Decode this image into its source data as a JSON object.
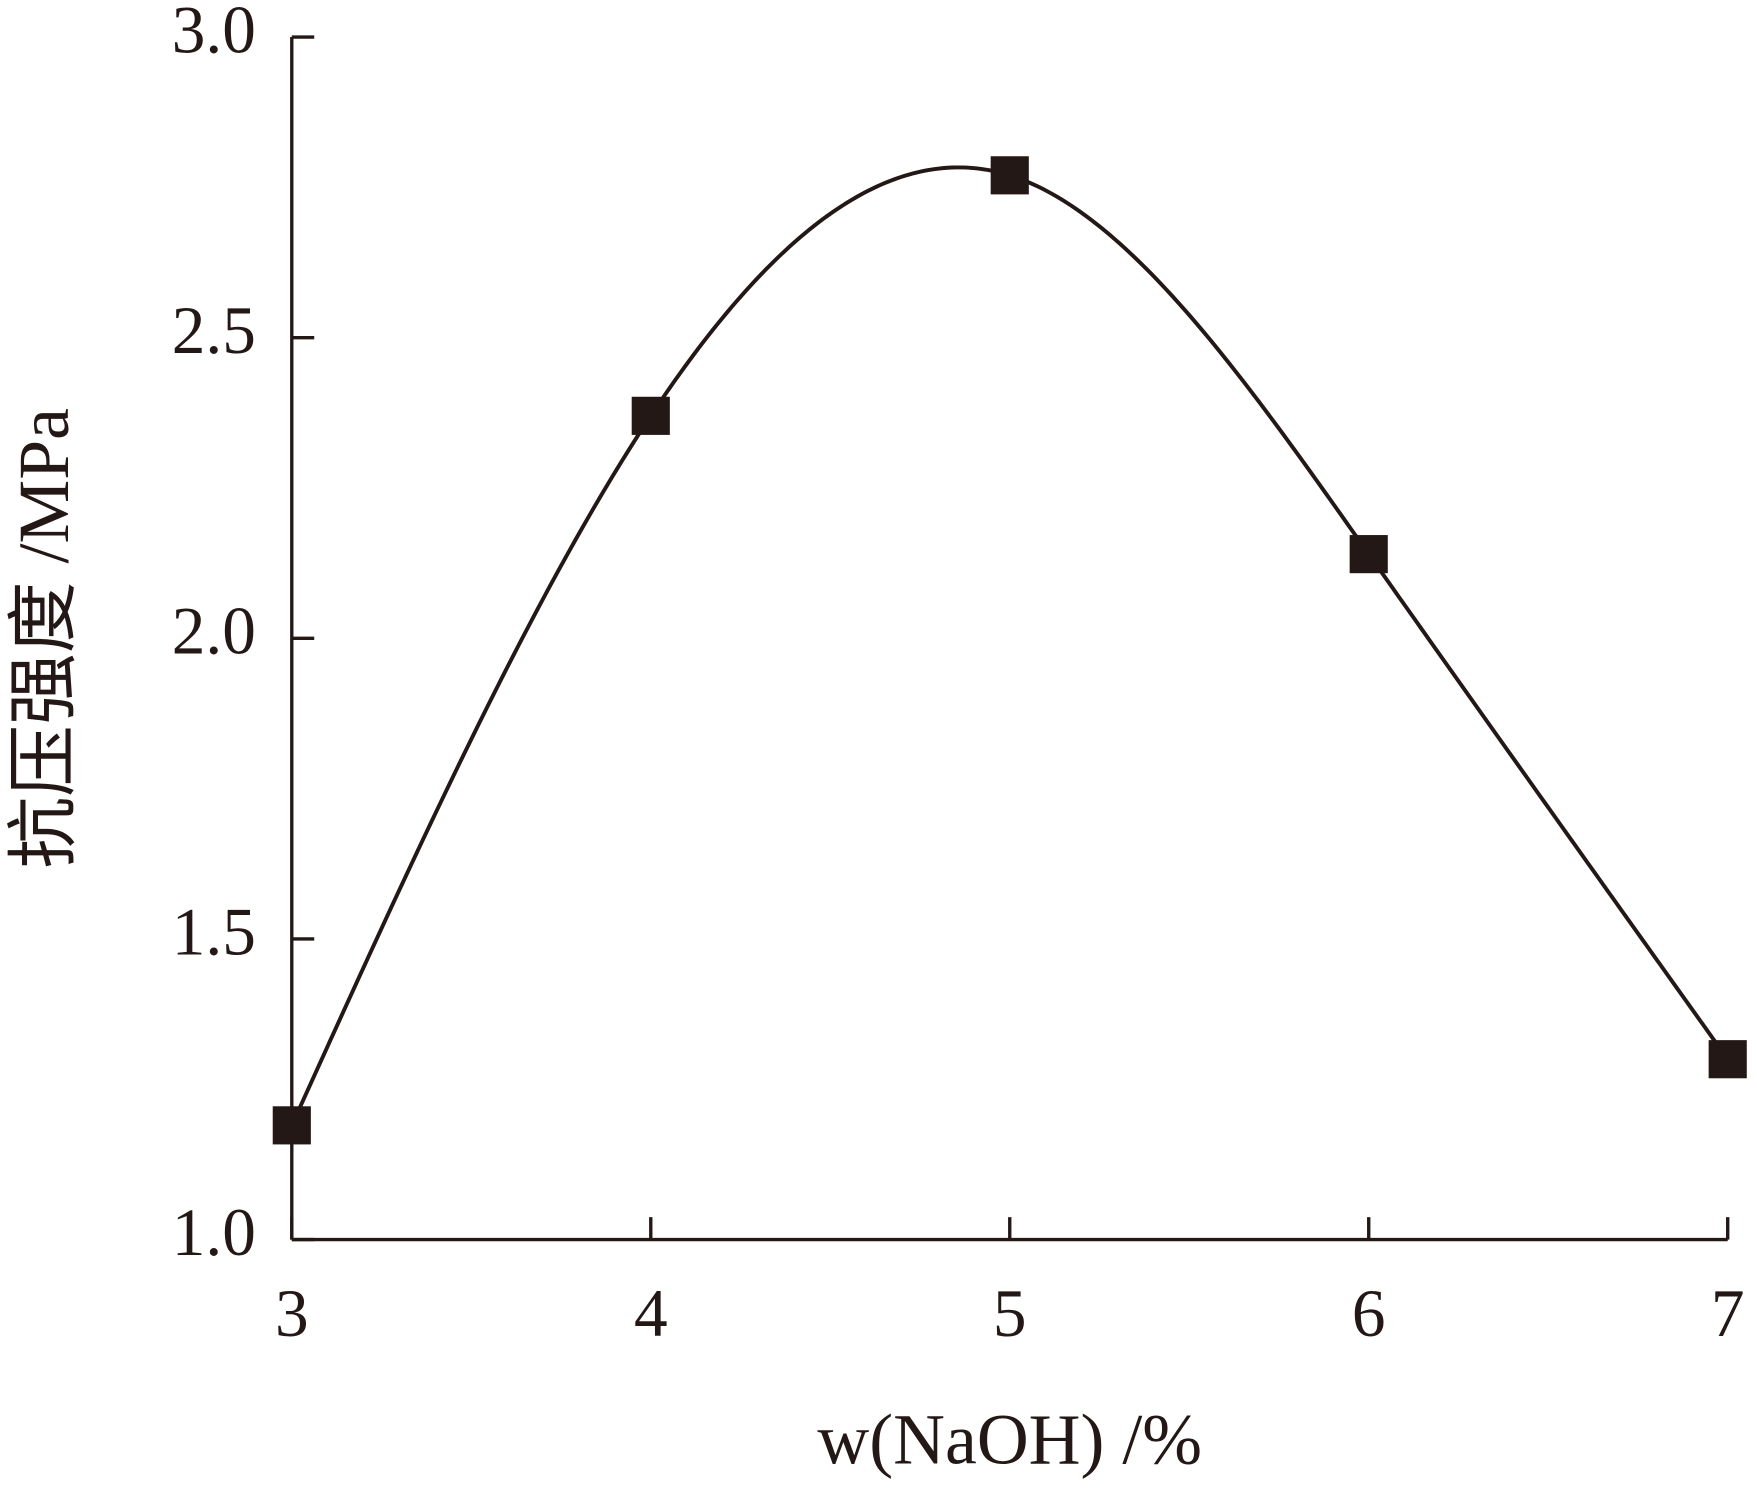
{
  "chart_data": {
    "type": "line",
    "x": [
      3,
      4,
      5,
      6,
      7
    ],
    "series": [
      {
        "name": "抗压强度",
        "color": "#231815",
        "values": [
          1.19,
          2.37,
          2.77,
          2.14,
          1.3
        ]
      }
    ],
    "xlabel": "w(NaOH) /%",
    "ylabel": "抗压强度 /MPa",
    "xlim": [
      3,
      7
    ],
    "xticks": [
      3,
      4,
      5,
      6,
      7
    ],
    "ylim": [
      1,
      3
    ],
    "yticks": [
      {
        "value": 1,
        "label": "1.0"
      },
      1.5,
      {
        "value": 2,
        "label": "2.0"
      },
      2.5,
      {
        "value": 3,
        "label": "3.0"
      }
    ],
    "grid": false,
    "smooth": true,
    "marker": "square"
  }
}
